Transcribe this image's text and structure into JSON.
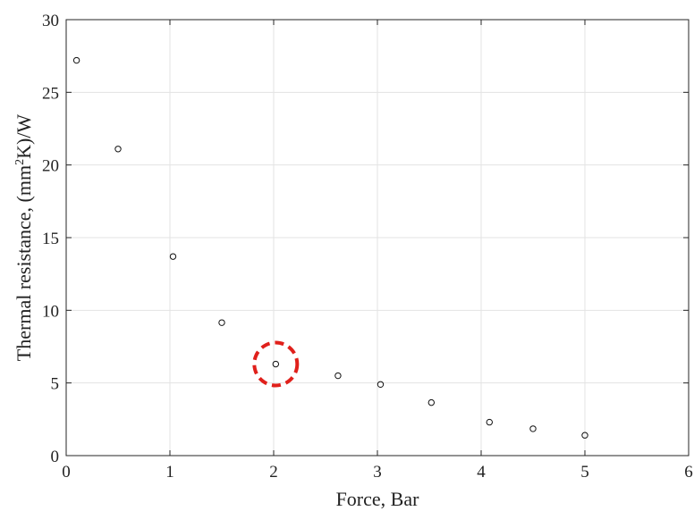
{
  "chart_data": {
    "type": "scatter",
    "title": "",
    "xlabel": "Force, Bar",
    "ylabel": {
      "before": "Thermal resistance, (mm",
      "superscript": "2",
      "after": "K)/W"
    },
    "xlim": [
      0,
      6
    ],
    "ylim": [
      0,
      30
    ],
    "xticks": [
      0,
      1,
      2,
      3,
      4,
      5,
      6
    ],
    "yticks": [
      0,
      5,
      10,
      15,
      20,
      25,
      30
    ],
    "grid": true,
    "legend": "none",
    "marker": "open-circle",
    "series": [
      {
        "x": [
          0.1,
          0.5,
          1.03,
          1.5,
          2.02,
          2.62,
          3.03,
          3.52,
          4.08,
          4.5,
          5.0
        ],
        "y": [
          27.2,
          21.1,
          13.7,
          9.15,
          6.3,
          5.5,
          4.9,
          3.65,
          2.3,
          1.85,
          1.4
        ],
        "color": "#111111"
      }
    ],
    "annotations": [
      {
        "type": "dashed-circle",
        "x": 2.02,
        "y": 6.3,
        "color": "#e0201b"
      }
    ]
  }
}
